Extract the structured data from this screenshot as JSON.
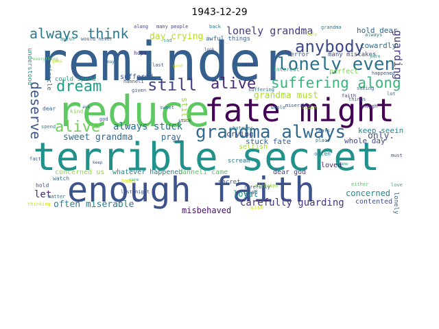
{
  "title": "1943-12-29",
  "words": [
    {
      "text": "reminder",
      "color": "#355f8d"
    },
    {
      "text": "terrible secret",
      "color": "#21918c"
    },
    {
      "text": "enough faith",
      "color": "#3b528b"
    },
    {
      "text": "reduce",
      "color": "#5ec962"
    },
    {
      "text": "fate might",
      "color": "#440154"
    },
    {
      "text": "grandma always",
      "color": "#31688e"
    },
    {
      "text": "lonely even",
      "color": "#2c728e"
    },
    {
      "text": "anybody",
      "color": "#3e4989"
    },
    {
      "text": "suffering along",
      "color": "#35b779"
    },
    {
      "text": "always think",
      "color": "#2a788e"
    },
    {
      "text": "still",
      "color": "#414487"
    },
    {
      "text": "alive",
      "color": "#482878"
    },
    {
      "text": "dream",
      "color": "#1f9e89"
    },
    {
      "text": "alive",
      "color": "#6ece58"
    },
    {
      "text": "deserve",
      "color": "#39568c"
    },
    {
      "text": "lonely grandma",
      "color": "#443983"
    },
    {
      "text": "always stuck",
      "color": "#2d708e"
    },
    {
      "text": "carefully guarding",
      "color": "#46327e"
    },
    {
      "text": "often miserable",
      "color": "#287d8e"
    },
    {
      "text": "sweet grandma",
      "color": "#30688e"
    },
    {
      "text": "grandma must",
      "color": "#addc30"
    },
    {
      "text": "concerned",
      "color": "#25858e"
    },
    {
      "text": "guarding",
      "color": "#453781"
    },
    {
      "text": "let",
      "color": "#472d7b"
    },
    {
      "text": "only.",
      "color": "#3b528b"
    },
    {
      "text": "misbehaved",
      "color": "#471063"
    },
    {
      "text": "day crying",
      "color": "#b5de2b"
    },
    {
      "text": "keep seeing",
      "color": "#26828e"
    },
    {
      "text": "hold dear",
      "color": "#34618d"
    },
    {
      "text": "whole day",
      "color": "#3f4788"
    },
    {
      "text": "pray",
      "color": "#31688e"
    },
    {
      "text": "loyal",
      "color": "#1e9b8a"
    },
    {
      "text": "cowardly",
      "color": "#2e6e8e"
    },
    {
      "text": "stuck fate",
      "color": "#365c8d"
    },
    {
      "text": "crying",
      "color": "#3d4d8a"
    },
    {
      "text": "whatever happened",
      "color": "#27808e"
    },
    {
      "text": "hanneli came",
      "color": "#56c667"
    },
    {
      "text": "concerned us",
      "color": "#8fd744"
    },
    {
      "text": "contented",
      "color": "#3e4a89"
    },
    {
      "text": "lonely night",
      "color": "#32658e"
    },
    {
      "text": "awful things",
      "color": "#355e8d"
    },
    {
      "text": "many mistakes",
      "color": "#3c4f8a"
    },
    {
      "text": "suffered",
      "color": "#3a548c"
    },
    {
      "text": "could spend",
      "color": "#1fa188"
    },
    {
      "text": "loved",
      "color": "#481a6c"
    },
    {
      "text": "dear god",
      "color": "#433e85"
    },
    {
      "text": "selfish",
      "color": "#a2da37"
    },
    {
      "text": "secret",
      "color": "#3a548c"
    },
    {
      "text": "scream",
      "color": "#2a768e"
    },
    {
      "text": "understood",
      "color": "#1f968b"
    },
    {
      "text": "miracle",
      "color": "#30698e"
    },
    {
      "text": "terror",
      "color": "#3d4e8a"
    },
    {
      "text": "interest",
      "color": "#22a785"
    },
    {
      "text": "perfect",
      "color": "#7ad151"
    },
    {
      "text": "along",
      "color": "#3f4889"
    },
    {
      "text": "many people",
      "color": "#404688"
    },
    {
      "text": "back",
      "color": "#2b758e"
    },
    {
      "text": "grandma",
      "color": "#29798e"
    },
    {
      "text": "always",
      "color": "#2e6f8e"
    },
    {
      "text": "awful",
      "color": "#23898e"
    },
    {
      "text": "would never",
      "color": "#3a548c"
    },
    {
      "text": "everything",
      "color": "#5cc863"
    },
    {
      "text": "sad",
      "color": "#28ae80"
    },
    {
      "text": "hope",
      "color": "#46307e"
    },
    {
      "text": "last",
      "color": "#3d4e8a"
    },
    {
      "text": "think",
      "color": "#472e7c"
    },
    {
      "text": "goes",
      "color": "#b8de29"
    },
    {
      "text": "happened",
      "color": "#3b528b"
    },
    {
      "text": "seeing",
      "color": "#34608d"
    },
    {
      "text": "faith",
      "color": "#424086"
    },
    {
      "text": "things",
      "color": "#38598c"
    },
    {
      "text": "spite",
      "color": "#95d840"
    },
    {
      "text": "tears",
      "color": "#31668e"
    },
    {
      "text": "place",
      "color": "#2f6c8e"
    },
    {
      "text": "enough",
      "color": "#453882"
    },
    {
      "text": "often",
      "color": "#277e8e"
    },
    {
      "text": "must",
      "color": "#3e4c8a"
    },
    {
      "text": "came",
      "color": "#20a486"
    },
    {
      "text": "either",
      "color": "#52c569"
    },
    {
      "text": "love",
      "color": "#2ab07f"
    },
    {
      "text": "god",
      "color": "#3c4f8a"
    },
    {
      "text": "still",
      "color": "#a0da39"
    },
    {
      "text": "mistakes",
      "color": "#86d549"
    },
    {
      "text": "glad",
      "color": "#3e4a89"
    },
    {
      "text": "wish",
      "color": "#c8e020"
    },
    {
      "text": "keep",
      "color": "#3a538b"
    },
    {
      "text": "happy",
      "color": "#d8e219"
    },
    {
      "text": "watch",
      "color": "#2d708e"
    },
    {
      "text": "hold",
      "color": "#3d4d8a"
    },
    {
      "text": "matter",
      "color": "#30698e"
    },
    {
      "text": "thinking",
      "color": "#cde11d"
    },
    {
      "text": "fact",
      "color": "#365c8d"
    },
    {
      "text": "spend",
      "color": "#23888e"
    },
    {
      "text": "dear",
      "color": "#33638d"
    },
    {
      "text": "kind",
      "color": "#7fd34e"
    },
    {
      "text": "given",
      "color": "#3a548c"
    },
    {
      "text": "hanneli",
      "color": "#404588"
    },
    {
      "text": "suffering",
      "color": "#2d718e"
    },
    {
      "text": "miserable",
      "color": "#3d4d8a"
    },
    {
      "text": "whatever",
      "color": "#287c8e"
    },
    {
      "text": "whole",
      "color": "#32648e"
    },
    {
      "text": "carefully",
      "color": "#3f4788"
    },
    {
      "text": "last night",
      "color": "#3b518b"
    },
    {
      "text": "sweet",
      "color": "#2b748e"
    },
    {
      "text": "good",
      "color": "#dde318"
    },
    {
      "text": "even",
      "color": "#31678e"
    },
    {
      "text": "help",
      "color": "#b0dd2f"
    },
    {
      "text": "look",
      "color": "#3e4989"
    },
    {
      "text": "may",
      "color": "#306a8e"
    },
    {
      "text": "care",
      "color": "#21a685"
    },
    {
      "text": "ask",
      "color": "#38588c"
    },
    {
      "text": "pure",
      "color": "#1f948c"
    },
    {
      "text": "stuck",
      "color": "#482173"
    },
    {
      "text": "lot",
      "color": "#355f8d"
    },
    {
      "text": "oh",
      "color": "#3b528b"
    }
  ]
}
